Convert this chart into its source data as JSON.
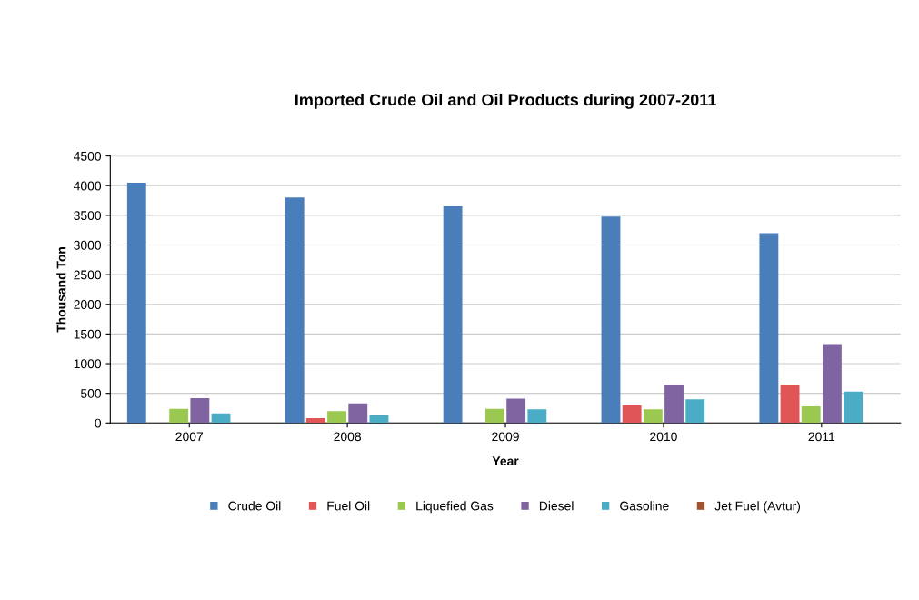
{
  "chart_data": {
    "type": "bar",
    "title": "Imported Crude Oil and Oil Products during 2007-2011",
    "xlabel": "Year",
    "ylabel": "Thousand Ton",
    "categories": [
      "2007",
      "2008",
      "2009",
      "2010",
      "2011"
    ],
    "series": [
      {
        "name": "Crude Oil",
        "color": "#4a7ebb",
        "values": [
          4050,
          3800,
          3650,
          3480,
          3200
        ]
      },
      {
        "name": "Fuel Oil",
        "color": "#e05555",
        "values": [
          null,
          80,
          null,
          300,
          650
        ]
      },
      {
        "name": "Liquefied Gas",
        "color": "#9bc850",
        "values": [
          240,
          200,
          240,
          230,
          280
        ]
      },
      {
        "name": "Diesel",
        "color": "#8064a2",
        "values": [
          420,
          330,
          410,
          650,
          1330
        ]
      },
      {
        "name": "Gasoline",
        "color": "#4bacc6",
        "values": [
          160,
          140,
          230,
          400,
          530
        ]
      },
      {
        "name": "Jet Fuel (Avtur)",
        "color": "#a0522d",
        "values": [
          null,
          null,
          null,
          null,
          null
        ]
      }
    ],
    "ylim": [
      0,
      4500
    ],
    "yticks": [
      0,
      500,
      1000,
      1500,
      2000,
      2500,
      3000,
      3500,
      4000,
      4500
    ],
    "grid": "y",
    "legend": "bottom"
  }
}
